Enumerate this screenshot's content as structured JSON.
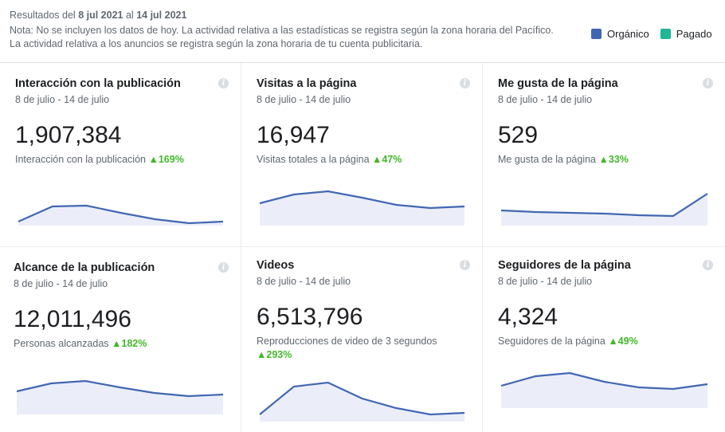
{
  "header": {
    "results_prefix": "Resultados del",
    "date_from": "8 jul 2021",
    "results_mid": "al",
    "date_to": "14 jul 2021",
    "note": "Nota: No se incluyen los datos de hoy. La actividad relativa a las estadísticas se registra según la zona horaria del Pacífico. La actividad relativa a los anuncios se registra según la zona horaria de tu cuenta publicitaria."
  },
  "legend": [
    {
      "label": "Orgánico",
      "color": "#4267b2"
    },
    {
      "label": "Pagado",
      "color": "#20b796"
    }
  ],
  "colors": {
    "line": "#4267b2",
    "fill": "#ebeef9",
    "positive": "#42b72a"
  },
  "cards": [
    {
      "title": "Interacción con la publicación",
      "range": "8 de julio - 14 de julio",
      "value": "1,907,384",
      "label": "Interacción con la publicación",
      "change": "▲169%",
      "trend": [
        5,
        24,
        25,
        16,
        8,
        3,
        5
      ]
    },
    {
      "title": "Visitas a la página",
      "range": "8 de julio - 14 de julio",
      "value": "16,947",
      "label": "Visitas totales a la página",
      "change": "▲47%",
      "trend": [
        28,
        39,
        43,
        35,
        26,
        22,
        24
      ]
    },
    {
      "title": "Me gusta de la página",
      "range": "8 de julio - 14 de julio",
      "value": "529",
      "label": "Me gusta de la página",
      "change": "▲33%",
      "trend": [
        19,
        17,
        16,
        15,
        13,
        12,
        40
      ]
    },
    {
      "title": "Alcance de la publicación",
      "range": "8 de julio - 14 de julio",
      "value": "12,011,496",
      "label": "Personas alcanzadas",
      "change": "▲182%",
      "trend": [
        29,
        39,
        42,
        34,
        27,
        23,
        25
      ]
    },
    {
      "title": "Videos",
      "range": "8 de julio - 14 de julio",
      "value": "6,513,796",
      "label": "Reproducciones de video de 3 segundos",
      "change": "▲293%",
      "trend": [
        9,
        44,
        49,
        29,
        17,
        9,
        11
      ]
    },
    {
      "title": "Seguidores de la página",
      "range": "8 de julio - 14 de julio",
      "value": "4,324",
      "label": "Seguidores de la página",
      "change": "▲49%",
      "trend": [
        28,
        40,
        44,
        33,
        26,
        24,
        30
      ]
    }
  ]
}
